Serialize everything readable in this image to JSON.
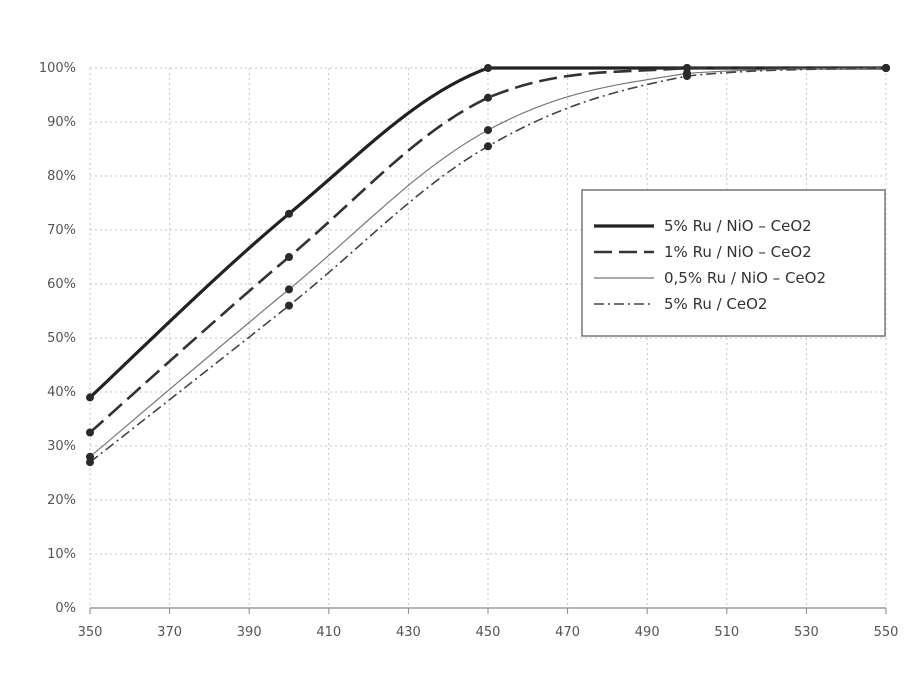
{
  "chart_data": {
    "type": "line",
    "x": [
      350,
      450,
      500,
      550
    ],
    "x_ticks": [
      "350",
      "370",
      "390",
      "410",
      "430",
      "450",
      "470",
      "490",
      "510",
      "530",
      "550"
    ],
    "y_ticks": [
      "0%",
      "10%",
      "20%",
      "30%",
      "40%",
      "50%",
      "60%",
      "70%",
      "80%",
      "90%",
      "100%"
    ],
    "xlim": [
      350,
      550
    ],
    "ylim": [
      0,
      100
    ],
    "grid": true,
    "legend_position": "center-right",
    "series": [
      {
        "name": "5% Ru / NiO – CeO2",
        "x": [
          350,
          400,
          450,
          500,
          550
        ],
        "values": [
          39,
          73,
          100,
          100,
          100
        ],
        "dash": "solid",
        "width": 3.2,
        "color": "#222222"
      },
      {
        "name": "1% Ru / NiO – CeO2",
        "x": [
          350,
          400,
          450,
          500,
          550
        ],
        "values": [
          32.5,
          65,
          94.5,
          100,
          100
        ],
        "dash": "long-dash",
        "width": 2.6,
        "color": "#333333"
      },
      {
        "name": "0,5% Ru / NiO – CeO2",
        "x": [
          350,
          400,
          450,
          500,
          550
        ],
        "values": [
          28,
          59,
          88.5,
          99,
          100
        ],
        "dash": "solid-thin",
        "width": 1.2,
        "color": "#777777"
      },
      {
        "name": "5% Ru / CeO2",
        "x": [
          350,
          400,
          450,
          500,
          550
        ],
        "values": [
          27,
          56,
          85.5,
          98.5,
          100
        ],
        "dash": "dash-dot",
        "width": 1.6,
        "color": "#444444"
      }
    ]
  }
}
